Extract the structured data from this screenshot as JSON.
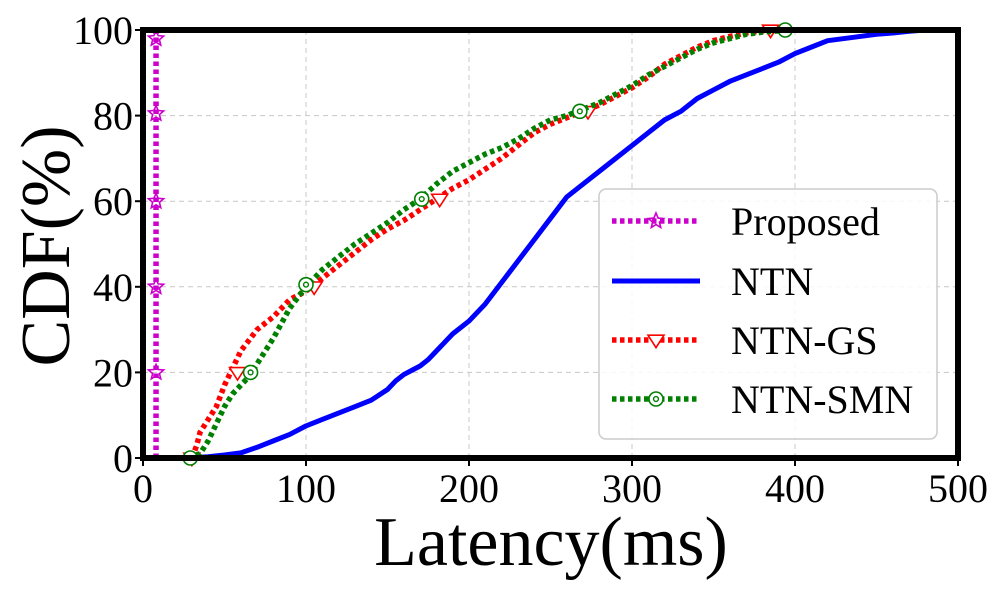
{
  "chart_data": {
    "type": "line",
    "title": "",
    "xlabel": "Latency(ms)",
    "ylabel": "CDF(%)",
    "xlim": [
      0,
      500
    ],
    "ylim": [
      0,
      100
    ],
    "xticks": [
      0,
      100,
      200,
      300,
      400,
      500
    ],
    "yticks": [
      0,
      20,
      40,
      60,
      80,
      100
    ],
    "xtick_labels": [
      "0",
      "100",
      "200",
      "300",
      "400",
      "500"
    ],
    "ytick_labels": [
      "0",
      "20",
      "40",
      "60",
      "80",
      "100"
    ],
    "grid": true,
    "legend_position": "center-right",
    "series": [
      {
        "name": "Proposed",
        "color": "#cc00cc",
        "line_style": "dotted",
        "marker": "star",
        "x": [
          8,
          8,
          8,
          8,
          8,
          8,
          8
        ],
        "y": [
          0,
          20,
          40,
          60,
          80,
          98,
          100
        ],
        "marker_points": [
          [
            8,
            20
          ],
          [
            8,
            40
          ],
          [
            8,
            60
          ],
          [
            8,
            80.5
          ],
          [
            8,
            98
          ]
        ]
      },
      {
        "name": "NTN",
        "color": "#0000ff",
        "line_style": "solid",
        "marker": "none",
        "x": [
          28,
          40,
          50,
          60,
          70,
          80,
          90,
          100,
          110,
          120,
          130,
          140,
          150,
          155,
          160,
          165,
          170,
          175,
          180,
          185,
          190,
          200,
          210,
          220,
          230,
          240,
          250,
          260,
          270,
          280,
          290,
          300,
          310,
          320,
          330,
          340,
          350,
          360,
          370,
          380,
          390,
          400,
          410,
          420,
          430,
          440,
          450,
          460,
          470,
          480
        ],
        "y": [
          0,
          0.3,
          0.7,
          1.2,
          2.5,
          4,
          5.5,
          7.5,
          9,
          10.5,
          12,
          13.5,
          16,
          18,
          19.5,
          20.5,
          21.5,
          23,
          25,
          27,
          29,
          32,
          36,
          41,
          46,
          51,
          56,
          61,
          64,
          67,
          70,
          73,
          76,
          79,
          81,
          84,
          86,
          88,
          89.5,
          91,
          92.5,
          94.5,
          96,
          97.5,
          98,
          98.5,
          99,
          99.3,
          99.7,
          100
        ]
      },
      {
        "name": "NTN-GS",
        "color": "#ff0000",
        "line_style": "dotted",
        "marker": "triangle-down",
        "x": [
          30,
          33,
          35,
          40,
          45,
          50,
          55,
          60,
          70,
          80,
          90,
          100,
          110,
          120,
          130,
          140,
          150,
          160,
          170,
          180,
          190,
          200,
          210,
          220,
          230,
          240,
          250,
          260,
          270,
          280,
          290,
          300,
          310,
          320,
          330,
          340,
          350,
          360,
          370,
          380,
          385
        ],
        "y": [
          0,
          3,
          6,
          9,
          12,
          17,
          21,
          25,
          30,
          33,
          37,
          39,
          42,
          45,
          48,
          51,
          53.5,
          55.5,
          58,
          60.5,
          63,
          65,
          67.5,
          70,
          73,
          76,
          78,
          79.5,
          81,
          82.5,
          84.5,
          86.5,
          89,
          92,
          94,
          96,
          97.5,
          98.5,
          99.3,
          99.8,
          100
        ],
        "marker_points": [
          [
            30,
            0
          ],
          [
            58,
            20
          ],
          [
            105,
            40
          ],
          [
            182,
            60.5
          ],
          [
            273,
            81
          ],
          [
            385,
            100
          ]
        ]
      },
      {
        "name": "NTN-SMN",
        "color": "#008000",
        "line_style": "dotted",
        "marker": "circle-dot",
        "x": [
          28,
          35,
          40,
          45,
          50,
          55,
          60,
          65,
          70,
          80,
          90,
          100,
          110,
          120,
          130,
          140,
          150,
          160,
          170,
          180,
          190,
          200,
          210,
          220,
          230,
          240,
          250,
          260,
          270,
          280,
          290,
          300,
          310,
          320,
          330,
          340,
          350,
          360,
          370,
          380,
          390,
          395
        ],
        "y": [
          0,
          1,
          4,
          8,
          12,
          15,
          17,
          19,
          22,
          28,
          35,
          40,
          44,
          47,
          50,
          52.5,
          55,
          58,
          60.5,
          64,
          67,
          69,
          71,
          72.5,
          74.5,
          77,
          79,
          80,
          81.5,
          83,
          85,
          87,
          89.5,
          91.5,
          93.5,
          95.5,
          97,
          98,
          99,
          99.5,
          99.8,
          100
        ],
        "marker_points": [
          [
            29,
            0
          ],
          [
            66,
            20
          ],
          [
            100,
            40.5
          ],
          [
            171,
            60.5
          ],
          [
            268,
            81
          ],
          [
            394,
            100
          ]
        ]
      }
    ]
  }
}
